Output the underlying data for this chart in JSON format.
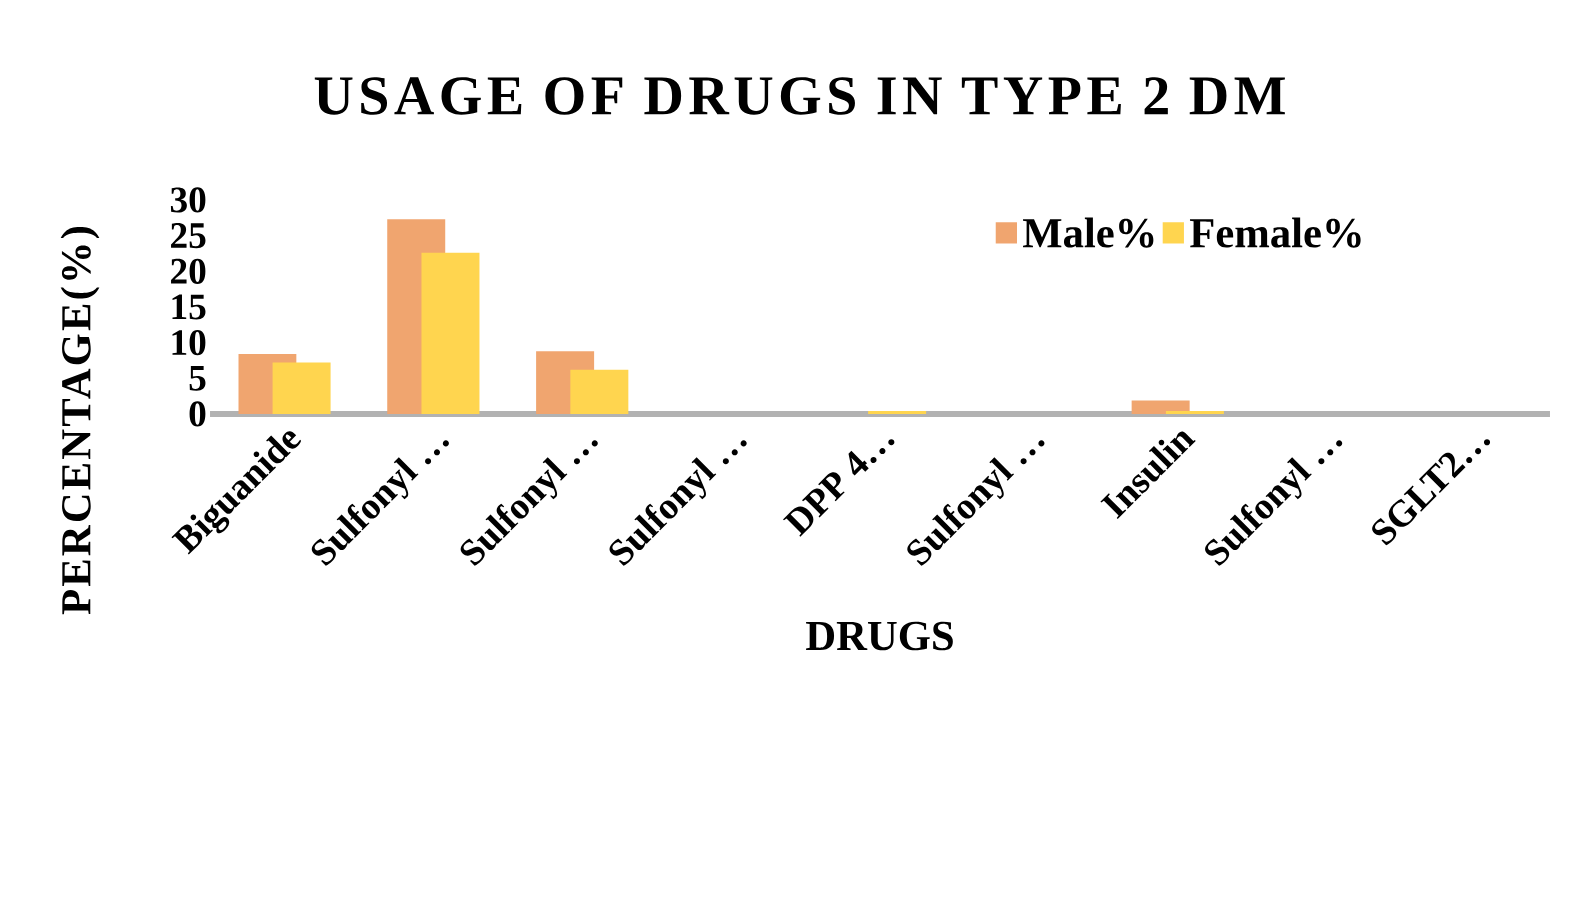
{
  "chart_data": {
    "type": "bar",
    "title": "USAGE OF DRUGS IN TYPE 2 DM",
    "xlabel": "DRUGS",
    "ylabel": "PERCENTAGE(%)",
    "categories": [
      "Biguanide",
      "Sulfonyl …",
      "Sulfonyl …",
      "Sulfonyl …",
      "DPP 4…",
      "Sulfonyl …",
      "Insulin",
      "Sulfonyl …",
      "SGLT2…"
    ],
    "series": [
      {
        "name": "Male%",
        "color": "#f0a56f",
        "values": [
          8.4,
          27.3,
          8.8,
          0,
          0,
          0,
          1.9,
          0,
          0
        ]
      },
      {
        "name": "Female%",
        "color": "#ffd54f",
        "values": [
          7.2,
          22.6,
          6.2,
          0,
          0.4,
          0,
          0.4,
          0,
          0
        ]
      }
    ],
    "ylim": [
      0,
      30
    ],
    "yticks": [
      0,
      5,
      10,
      15,
      20,
      25,
      30
    ],
    "legend": "top right",
    "grid": false
  }
}
